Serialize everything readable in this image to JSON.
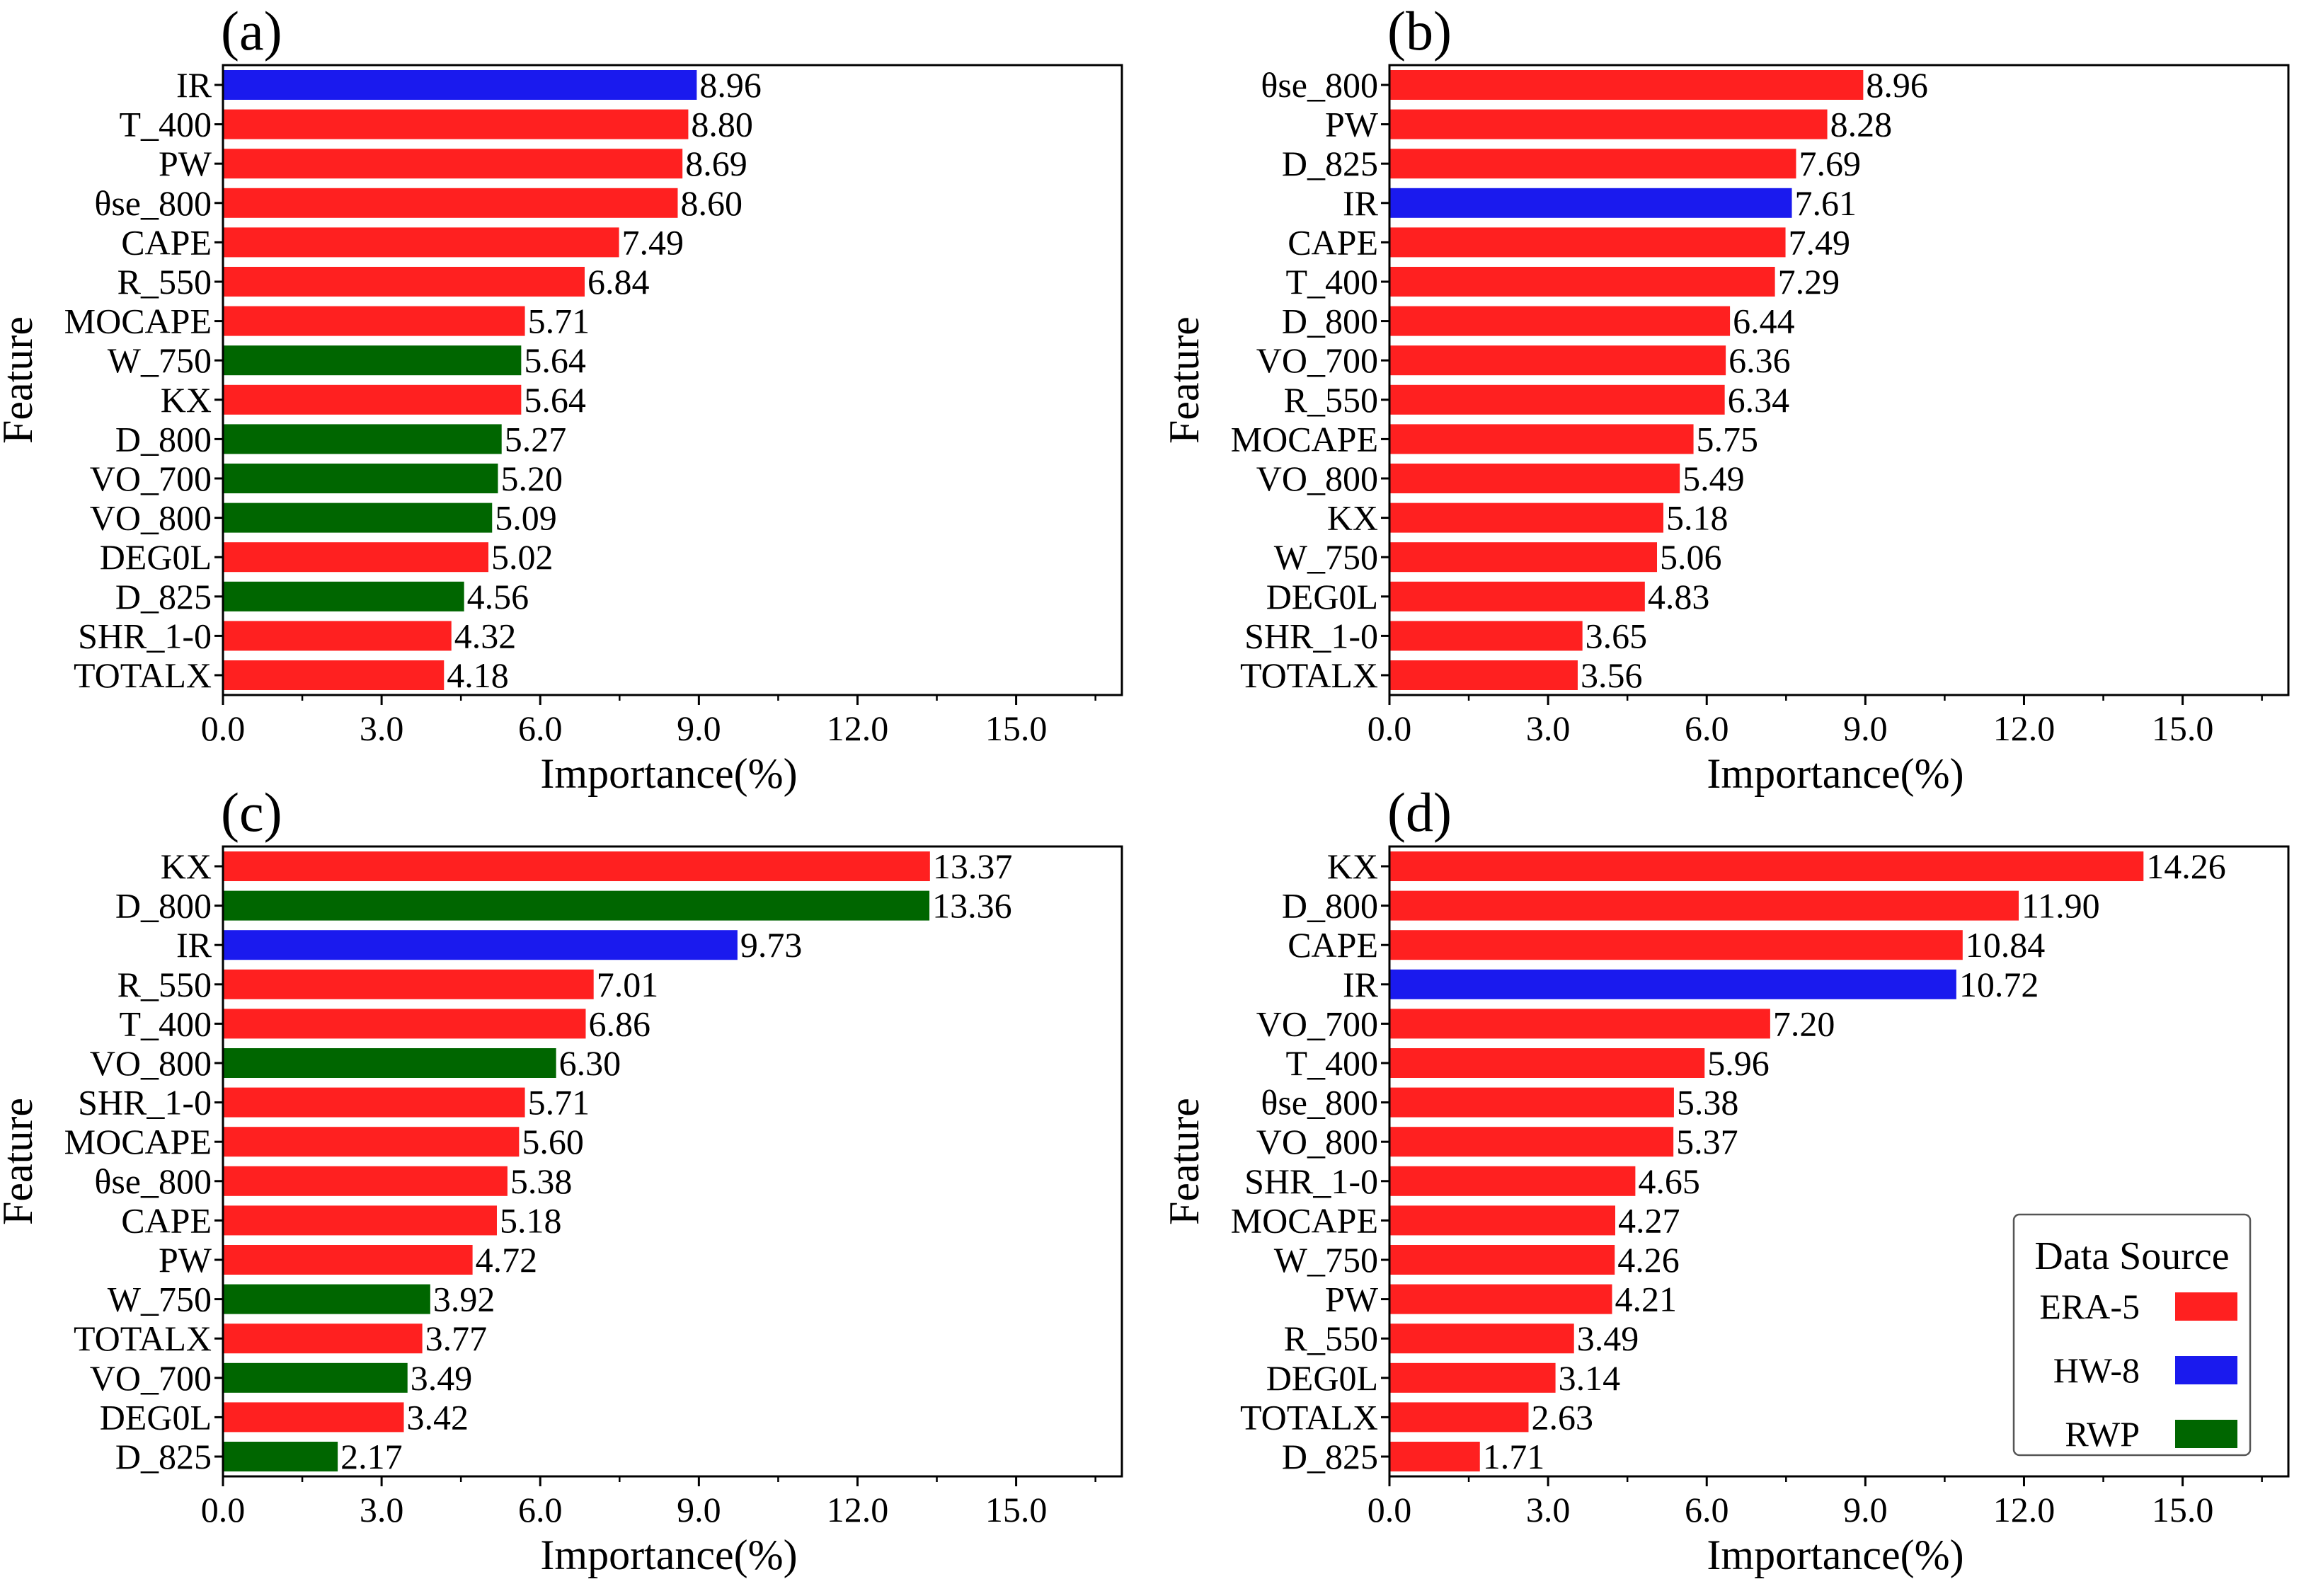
{
  "figure": {
    "xtick_labels": [
      "0.0",
      "3.0",
      "6.0",
      "9.0",
      "12.0",
      "15.0"
    ]
  },
  "colors": {
    "ERA-5": "#ff2020",
    "HW-8": "#1a1aee",
    "RWP": "#006600"
  },
  "chart_data": [
    {
      "panel": "(a)",
      "type": "bar",
      "orientation": "horizontal",
      "xlabel": "Importance(%)",
      "ylabel": "Feature",
      "xlim": [
        0,
        17
      ],
      "xticks": [
        0,
        3,
        6,
        9,
        12,
        15
      ],
      "bars": [
        {
          "feature": "IR",
          "value": 8.96,
          "value_label": "8.96",
          "source": "HW-8"
        },
        {
          "feature": "T_400",
          "value": 8.8,
          "value_label": "8.80",
          "source": "ERA-5"
        },
        {
          "feature": "PW",
          "value": 8.69,
          "value_label": "8.69",
          "source": "ERA-5"
        },
        {
          "feature": "θse_800",
          "value": 8.6,
          "value_label": "8.60",
          "source": "ERA-5"
        },
        {
          "feature": "CAPE",
          "value": 7.49,
          "value_label": "7.49",
          "source": "ERA-5"
        },
        {
          "feature": "R_550",
          "value": 6.84,
          "value_label": "6.84",
          "source": "ERA-5"
        },
        {
          "feature": "MOCAPE",
          "value": 5.71,
          "value_label": "5.71",
          "source": "ERA-5"
        },
        {
          "feature": "W_750",
          "value": 5.64,
          "value_label": "5.64",
          "source": "RWP"
        },
        {
          "feature": "KX",
          "value": 5.64,
          "value_label": "5.64",
          "source": "ERA-5"
        },
        {
          "feature": "D_800",
          "value": 5.27,
          "value_label": "5.27",
          "source": "RWP"
        },
        {
          "feature": "VO_700",
          "value": 5.2,
          "value_label": "5.20",
          "source": "RWP"
        },
        {
          "feature": "VO_800",
          "value": 5.09,
          "value_label": "5.09",
          "source": "RWP"
        },
        {
          "feature": "DEG0L",
          "value": 5.02,
          "value_label": "5.02",
          "source": "ERA-5"
        },
        {
          "feature": "D_825",
          "value": 4.56,
          "value_label": "4.56",
          "source": "RWP"
        },
        {
          "feature": "SHR_1-0",
          "value": 4.32,
          "value_label": "4.32",
          "source": "ERA-5"
        },
        {
          "feature": "TOTALX",
          "value": 4.18,
          "value_label": "4.18",
          "source": "ERA-5"
        }
      ]
    },
    {
      "panel": "(b)",
      "type": "bar",
      "orientation": "horizontal",
      "xlabel": "Importance(%)",
      "ylabel": "Feature",
      "xlim": [
        0,
        17
      ],
      "xticks": [
        0,
        3,
        6,
        9,
        12,
        15
      ],
      "bars": [
        {
          "feature": "θse_800",
          "value": 8.96,
          "value_label": "8.96",
          "source": "ERA-5"
        },
        {
          "feature": "PW",
          "value": 8.28,
          "value_label": "8.28",
          "source": "ERA-5"
        },
        {
          "feature": "D_825",
          "value": 7.69,
          "value_label": "7.69",
          "source": "ERA-5"
        },
        {
          "feature": "IR",
          "value": 7.61,
          "value_label": "7.61",
          "source": "HW-8"
        },
        {
          "feature": "CAPE",
          "value": 7.49,
          "value_label": "7.49",
          "source": "ERA-5"
        },
        {
          "feature": "T_400",
          "value": 7.29,
          "value_label": "7.29",
          "source": "ERA-5"
        },
        {
          "feature": "D_800",
          "value": 6.44,
          "value_label": "6.44",
          "source": "ERA-5"
        },
        {
          "feature": "VO_700",
          "value": 6.36,
          "value_label": "6.36",
          "source": "ERA-5"
        },
        {
          "feature": "R_550",
          "value": 6.34,
          "value_label": "6.34",
          "source": "ERA-5"
        },
        {
          "feature": "MOCAPE",
          "value": 5.75,
          "value_label": "5.75",
          "source": "ERA-5"
        },
        {
          "feature": "VO_800",
          "value": 5.49,
          "value_label": "5.49",
          "source": "ERA-5"
        },
        {
          "feature": "KX",
          "value": 5.18,
          "value_label": "5.18",
          "source": "ERA-5"
        },
        {
          "feature": "W_750",
          "value": 5.06,
          "value_label": "5.06",
          "source": "ERA-5"
        },
        {
          "feature": "DEG0L",
          "value": 4.83,
          "value_label": "4.83",
          "source": "ERA-5"
        },
        {
          "feature": "SHR_1-0",
          "value": 3.65,
          "value_label": "3.65",
          "source": "ERA-5"
        },
        {
          "feature": "TOTALX",
          "value": 3.56,
          "value_label": "3.56",
          "source": "ERA-5"
        }
      ]
    },
    {
      "panel": "(c)",
      "type": "bar",
      "orientation": "horizontal",
      "xlabel": "Importance(%)",
      "ylabel": "Feature",
      "xlim": [
        0,
        17
      ],
      "xticks": [
        0,
        3,
        6,
        9,
        12,
        15
      ],
      "bars": [
        {
          "feature": "KX",
          "value": 13.37,
          "value_label": "13.37",
          "source": "ERA-5"
        },
        {
          "feature": "D_800",
          "value": 13.36,
          "value_label": "13.36",
          "source": "RWP"
        },
        {
          "feature": "IR",
          "value": 9.73,
          "value_label": "9.73",
          "source": "HW-8"
        },
        {
          "feature": "R_550",
          "value": 7.01,
          "value_label": "7.01",
          "source": "ERA-5"
        },
        {
          "feature": "T_400",
          "value": 6.86,
          "value_label": "6.86",
          "source": "ERA-5"
        },
        {
          "feature": "VO_800",
          "value": 6.3,
          "value_label": "6.30",
          "source": "RWP"
        },
        {
          "feature": "SHR_1-0",
          "value": 5.71,
          "value_label": "5.71",
          "source": "ERA-5"
        },
        {
          "feature": "MOCAPE",
          "value": 5.6,
          "value_label": "5.60",
          "source": "ERA-5"
        },
        {
          "feature": "θse_800",
          "value": 5.38,
          "value_label": "5.38",
          "source": "ERA-5"
        },
        {
          "feature": "CAPE",
          "value": 5.18,
          "value_label": "5.18",
          "source": "ERA-5"
        },
        {
          "feature": "PW",
          "value": 4.72,
          "value_label": "4.72",
          "source": "ERA-5"
        },
        {
          "feature": "W_750",
          "value": 3.92,
          "value_label": "3.92",
          "source": "RWP"
        },
        {
          "feature": "TOTALX",
          "value": 3.77,
          "value_label": "3.77",
          "source": "ERA-5"
        },
        {
          "feature": "VO_700",
          "value": 3.49,
          "value_label": "3.49",
          "source": "RWP"
        },
        {
          "feature": "DEG0L",
          "value": 3.42,
          "value_label": "3.42",
          "source": "ERA-5"
        },
        {
          "feature": "D_825",
          "value": 2.17,
          "value_label": "2.17",
          "source": "RWP"
        }
      ]
    },
    {
      "panel": "(d)",
      "type": "bar",
      "orientation": "horizontal",
      "xlabel": "Importance(%)",
      "ylabel": "Feature",
      "xlim": [
        0,
        17
      ],
      "xticks": [
        0,
        3,
        6,
        9,
        12,
        15
      ],
      "bars": [
        {
          "feature": "KX",
          "value": 14.26,
          "value_label": "14.26",
          "source": "ERA-5"
        },
        {
          "feature": "D_800",
          "value": 11.9,
          "value_label": "11.90",
          "source": "ERA-5"
        },
        {
          "feature": "CAPE",
          "value": 10.84,
          "value_label": "10.84",
          "source": "ERA-5"
        },
        {
          "feature": "IR",
          "value": 10.72,
          "value_label": "10.72",
          "source": "HW-8"
        },
        {
          "feature": "VO_700",
          "value": 7.2,
          "value_label": "7.20",
          "source": "ERA-5"
        },
        {
          "feature": "T_400",
          "value": 5.96,
          "value_label": "5.96",
          "source": "ERA-5"
        },
        {
          "feature": "θse_800",
          "value": 5.38,
          "value_label": "5.38",
          "source": "ERA-5"
        },
        {
          "feature": "VO_800",
          "value": 5.37,
          "value_label": "5.37",
          "source": "ERA-5"
        },
        {
          "feature": "SHR_1-0",
          "value": 4.65,
          "value_label": "4.65",
          "source": "ERA-5"
        },
        {
          "feature": "MOCAPE",
          "value": 4.27,
          "value_label": "4.27",
          "source": "ERA-5"
        },
        {
          "feature": "W_750",
          "value": 4.26,
          "value_label": "4.26",
          "source": "ERA-5"
        },
        {
          "feature": "PW",
          "value": 4.21,
          "value_label": "4.21",
          "source": "ERA-5"
        },
        {
          "feature": "R_550",
          "value": 3.49,
          "value_label": "3.49",
          "source": "ERA-5"
        },
        {
          "feature": "DEG0L",
          "value": 3.14,
          "value_label": "3.14",
          "source": "ERA-5"
        },
        {
          "feature": "TOTALX",
          "value": 2.63,
          "value_label": "2.63",
          "source": "ERA-5"
        },
        {
          "feature": "D_825",
          "value": 1.71,
          "value_label": "1.71",
          "source": "ERA-5"
        }
      ],
      "legend": {
        "title": "Data Source",
        "entries": [
          {
            "label": "ERA-5",
            "source": "ERA-5"
          },
          {
            "label": "HW-8",
            "source": "HW-8"
          },
          {
            "label": "RWP",
            "source": "RWP"
          }
        ]
      }
    }
  ]
}
